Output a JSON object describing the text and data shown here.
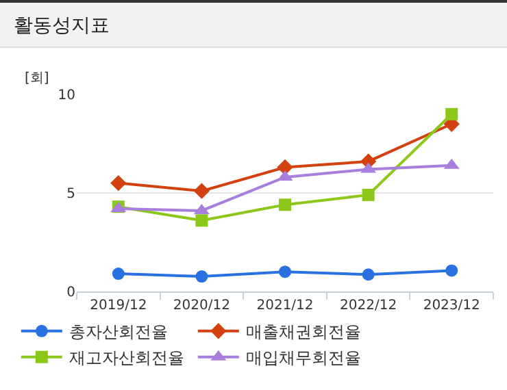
{
  "chart_data": {
    "type": "line",
    "title": "활동성지표",
    "ylabel": "[회]",
    "categories": [
      "2019/12",
      "2020/12",
      "2021/12",
      "2022/12",
      "2023/12"
    ],
    "series": [
      {
        "name": "총자산회전율",
        "color": "#2970e0",
        "marker": "circle",
        "values": [
          0.9,
          0.76,
          1.0,
          0.86,
          1.06
        ]
      },
      {
        "name": "매출채권회전율",
        "color": "#d2410f",
        "marker": "diamond",
        "values": [
          5.5,
          5.1,
          6.3,
          6.6,
          8.5
        ]
      },
      {
        "name": "재고자산회전율",
        "color": "#8cc819",
        "marker": "square",
        "values": [
          4.3,
          3.6,
          4.4,
          4.9,
          9.0
        ]
      },
      {
        "name": "매입채무회전율",
        "color": "#a87fdc",
        "marker": "triangle",
        "values": [
          4.2,
          4.1,
          5.8,
          6.2,
          6.4
        ]
      }
    ],
    "ylim": [
      0,
      10
    ],
    "yticks": [
      0,
      5,
      10
    ],
    "grid": "y",
    "legend": "bottom"
  }
}
